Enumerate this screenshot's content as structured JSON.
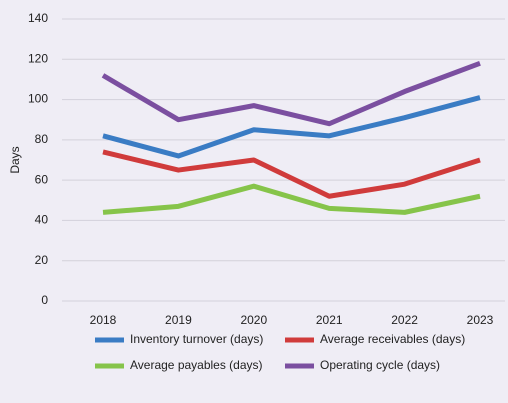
{
  "chart_data": {
    "type": "line",
    "y_label": "Days",
    "categories": [
      "2018",
      "2019",
      "2020",
      "2021",
      "2022",
      "2023"
    ],
    "series": [
      {
        "name": "Inventory turnover (days)",
        "color": "#3a7cc4",
        "values": [
          82,
          72,
          85,
          82,
          91,
          101
        ]
      },
      {
        "name": "Average receivables (days)",
        "color": "#d03b3b",
        "values": [
          74,
          65,
          70,
          52,
          58,
          70
        ]
      },
      {
        "name": "Average payables (days)",
        "color": "#86c44a",
        "values": [
          44,
          47,
          57,
          46,
          44,
          52
        ]
      },
      {
        "name": "Operating cycle (days)",
        "color": "#7b4fa0",
        "values": [
          112,
          90,
          97,
          88,
          104,
          118
        ]
      }
    ],
    "ylim": [
      0,
      140
    ],
    "yticks": [
      0,
      20,
      40,
      60,
      80,
      100,
      120,
      140
    ],
    "grid": true
  }
}
